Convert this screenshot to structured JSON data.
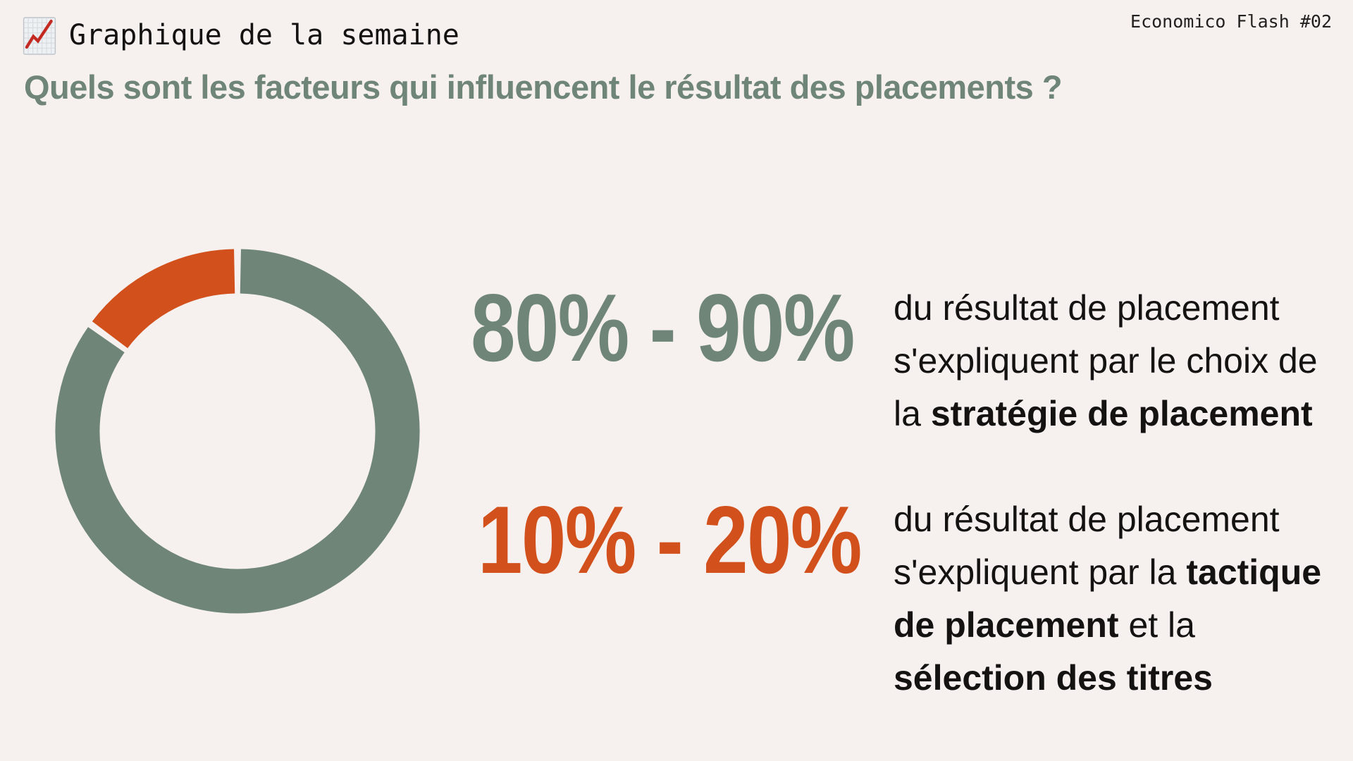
{
  "header": {
    "icon": "chart-increasing-emoji",
    "title": "Graphique de la semaine",
    "edition": "Economico Flash #02"
  },
  "subtitle": {
    "text": "Quels sont les facteurs qui influencent le résultat des placements ?"
  },
  "colors": {
    "background": "#F6F1EE",
    "green": "#6E8577",
    "orange": "#D2501C",
    "dark_text": "#151311",
    "emoji_line_red": "#C32A21"
  },
  "chart_data": {
    "type": "pie",
    "donut": true,
    "title": "Quels sont les facteurs qui influencent le résultat des placements ?",
    "direction": "clockwise",
    "start_angle_deg": 0,
    "inner_radius_ratio": 0.76,
    "gap_deg": 2.2,
    "slices": [
      {
        "label": "Stratégie de placement",
        "value": 85,
        "value_range": "80% - 90%",
        "color": "#6E8577"
      },
      {
        "label": "Tactique de placement et sélection des titres",
        "value": 15,
        "value_range": "10% - 20%",
        "color": "#D2501C"
      }
    ],
    "legend_position": "none"
  },
  "rows": [
    {
      "value": "80% - 90%",
      "value_color": "#6E8577",
      "desc": [
        {
          "text": "du résultat de placement s'expliquent par le choix de la ",
          "bold": false
        },
        {
          "text": "stratégie de placement",
          "bold": true
        }
      ]
    },
    {
      "value": "10% - 20%",
      "value_color": "#D2501C",
      "desc": [
        {
          "text": "du résultat de placement s'expliquent par la ",
          "bold": false
        },
        {
          "text": "tactique de placement",
          "bold": true
        },
        {
          "text": " et la ",
          "bold": false
        },
        {
          "text": "sélection des titres",
          "bold": true
        }
      ]
    }
  ]
}
